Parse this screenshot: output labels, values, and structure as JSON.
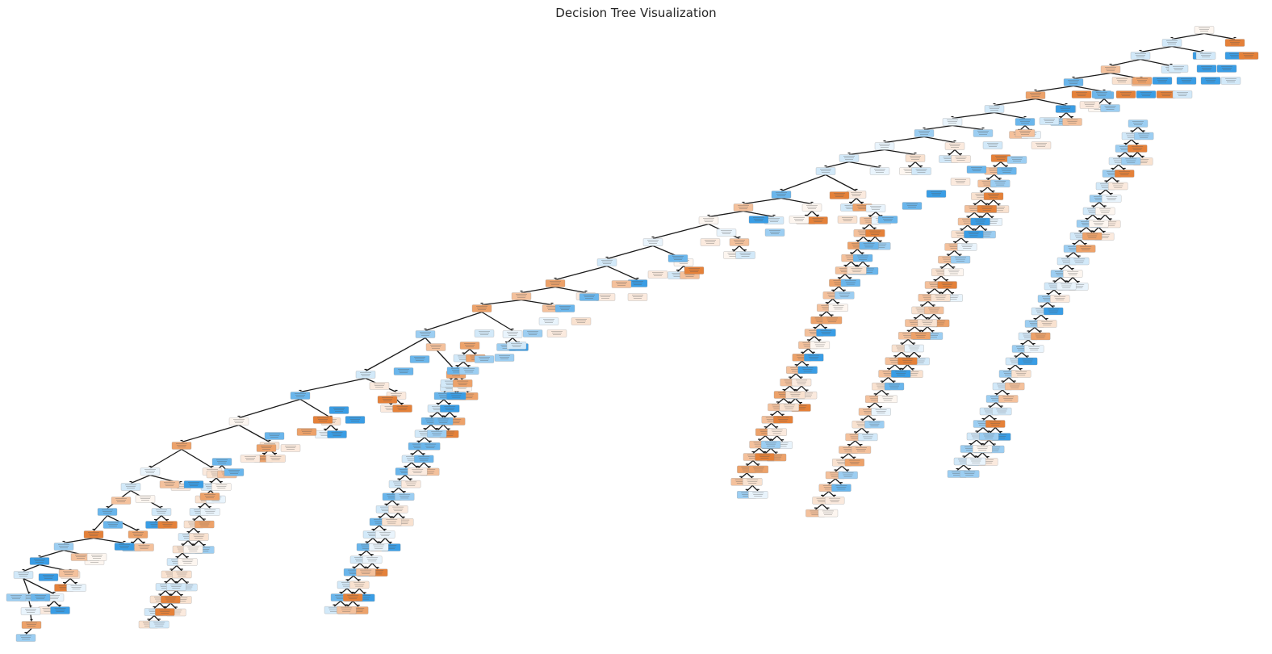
{
  "title": "Decision Tree Visualization",
  "palette": {
    "class_a_deep": "#e58139",
    "class_a_light": "#f9e2d0",
    "class_b_deep": "#399de5",
    "class_b_light": "#d2e9f9",
    "neutral": "#fdf6f0",
    "edge": "#1a1a1a"
  },
  "node_text_legible": false
}
